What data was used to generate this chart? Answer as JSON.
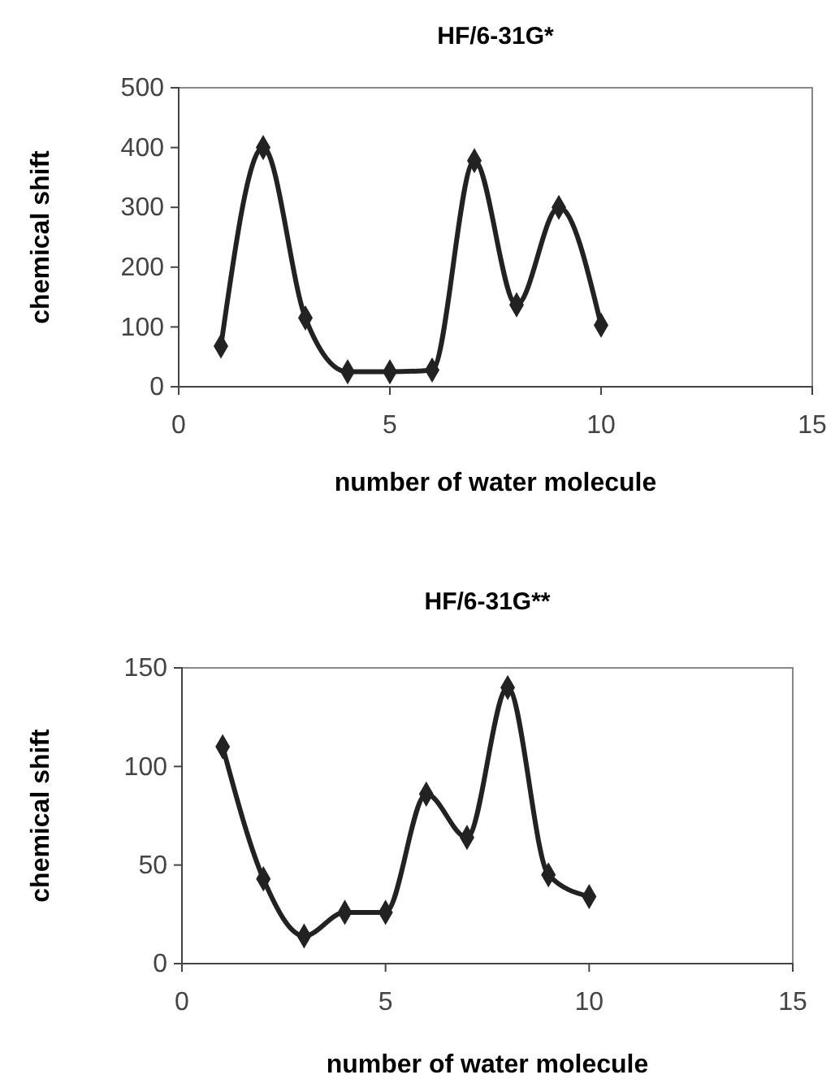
{
  "chart_data": [
    {
      "type": "line",
      "title": "HF/6-31G*",
      "xlabel": "number of water molecule",
      "ylabel": "chemical shift",
      "x": [
        1,
        2,
        3,
        4,
        5,
        6,
        7,
        8,
        9,
        10
      ],
      "series": [
        {
          "color": "#222222",
          "values": [
            68,
            400,
            115,
            25,
            25,
            28,
            378,
            137,
            300,
            103
          ]
        }
      ],
      "xlim": [
        0,
        15
      ],
      "xticks": [
        0,
        5,
        10,
        15
      ],
      "ylim": [
        0,
        500
      ],
      "yticks": [
        0,
        100,
        200,
        300,
        400,
        500
      ],
      "marker": "diamond",
      "grid": false
    },
    {
      "type": "line",
      "title": "HF/6-31G**",
      "xlabel": "number of water molecule",
      "ylabel": "chemical shift",
      "x": [
        1,
        2,
        3,
        4,
        5,
        6,
        7,
        8,
        9,
        10
      ],
      "series": [
        {
          "color": "#222222",
          "values": [
            110,
            43,
            14,
            26,
            26,
            86,
            64,
            140,
            45,
            34
          ]
        }
      ],
      "xlim": [
        0,
        15
      ],
      "xticks": [
        0,
        5,
        10,
        15
      ],
      "ylim": [
        0,
        150
      ],
      "yticks": [
        0,
        50,
        100,
        150
      ],
      "marker": "diamond",
      "grid": false
    }
  ]
}
